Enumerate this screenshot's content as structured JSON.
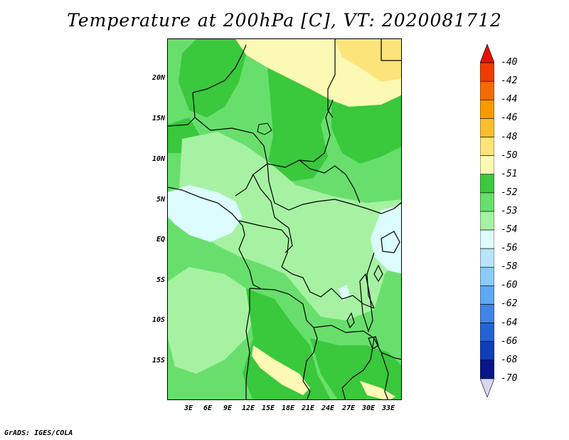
{
  "title": "Temperature at 200hPa [C], VT: 2020081712",
  "footer": "GrADS: IGES/COLA",
  "map": {
    "lat_labels": [
      "20N",
      "15N",
      "10N",
      "5N",
      "EQ",
      "5S",
      "10S",
      "15S"
    ],
    "lon_labels": [
      "3E",
      "6E",
      "9E",
      "12E",
      "15E",
      "18E",
      "21E",
      "24E",
      "27E",
      "30E",
      "33E"
    ]
  },
  "colorbar": {
    "labels": [
      "-40",
      "-42",
      "-44",
      "-46",
      "-48",
      "-50",
      "-51",
      "-52",
      "-53",
      "-54",
      "-56",
      "-58",
      "-60",
      "-62",
      "-64",
      "-66",
      "-68",
      "-70"
    ],
    "colors": [
      "#e21400",
      "#ee3c00",
      "#f36a00",
      "#f99a00",
      "#fbbf2e",
      "#fde47a",
      "#fcf9b4",
      "#3ac83c",
      "#68df6c",
      "#a6f2a2",
      "#dcfcfd",
      "#b7e4fb",
      "#8bcaf9",
      "#5fa8f2",
      "#3f84e6",
      "#2363d3",
      "#0f3fb8",
      "#08158a",
      "#d8d8f4"
    ]
  }
}
